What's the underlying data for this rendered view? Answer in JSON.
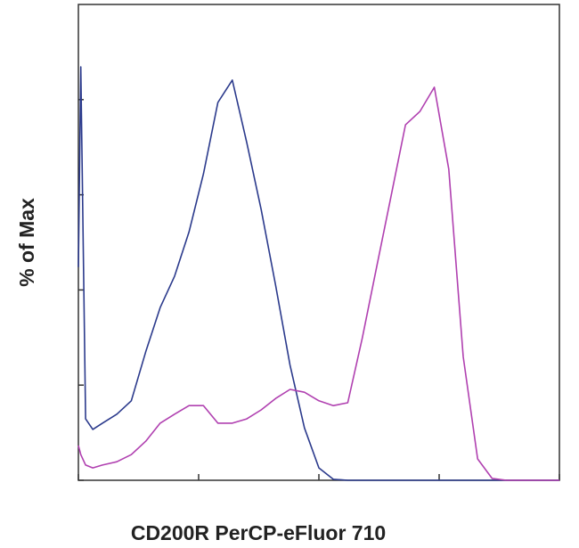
{
  "chart_data": {
    "type": "line",
    "x_label": "CD200R PerCP-eFluor 710",
    "y_label": "% of Max",
    "x": [
      0,
      0.5,
      1.5,
      3,
      5,
      8,
      11,
      14,
      17,
      20,
      23,
      26,
      29,
      32,
      35,
      38,
      41,
      44,
      47,
      50,
      53,
      56,
      59,
      62,
      65,
      68,
      71,
      74,
      77,
      80,
      83,
      86,
      89,
      92,
      95,
      98,
      100
    ],
    "series": [
      {
        "color": "#2b3a8c",
        "values": [
          44.8,
          86.9,
          12.9,
          10.7,
          12.0,
          13.9,
          16.7,
          27.0,
          36.3,
          42.9,
          52.2,
          64.4,
          79.4,
          84.1,
          71.0,
          56.9,
          41.0,
          24.2,
          11.0,
          2.6,
          0.2,
          0,
          0,
          0,
          0,
          0,
          0,
          0,
          0,
          0,
          0,
          0,
          0,
          0,
          0,
          0,
          0
        ]
      },
      {
        "color": "#b040b0",
        "values": [
          7.3,
          5.4,
          3.2,
          2.6,
          3.2,
          3.9,
          5.4,
          8.2,
          12.0,
          13.9,
          15.7,
          15.7,
          12.0,
          12.0,
          12.9,
          14.8,
          17.2,
          19.1,
          18.5,
          16.7,
          15.7,
          16.3,
          29.8,
          44.8,
          59.7,
          74.7,
          77.5,
          82.6,
          65.4,
          26.0,
          4.5,
          0.4,
          0,
          0,
          0,
          0,
          0
        ]
      }
    ],
    "xlim": [
      0,
      100
    ],
    "xticks": [
      0,
      25,
      50,
      75,
      100
    ],
    "ylim": [
      0,
      100
    ],
    "yticks": [
      0,
      20,
      40,
      60,
      80
    ]
  }
}
